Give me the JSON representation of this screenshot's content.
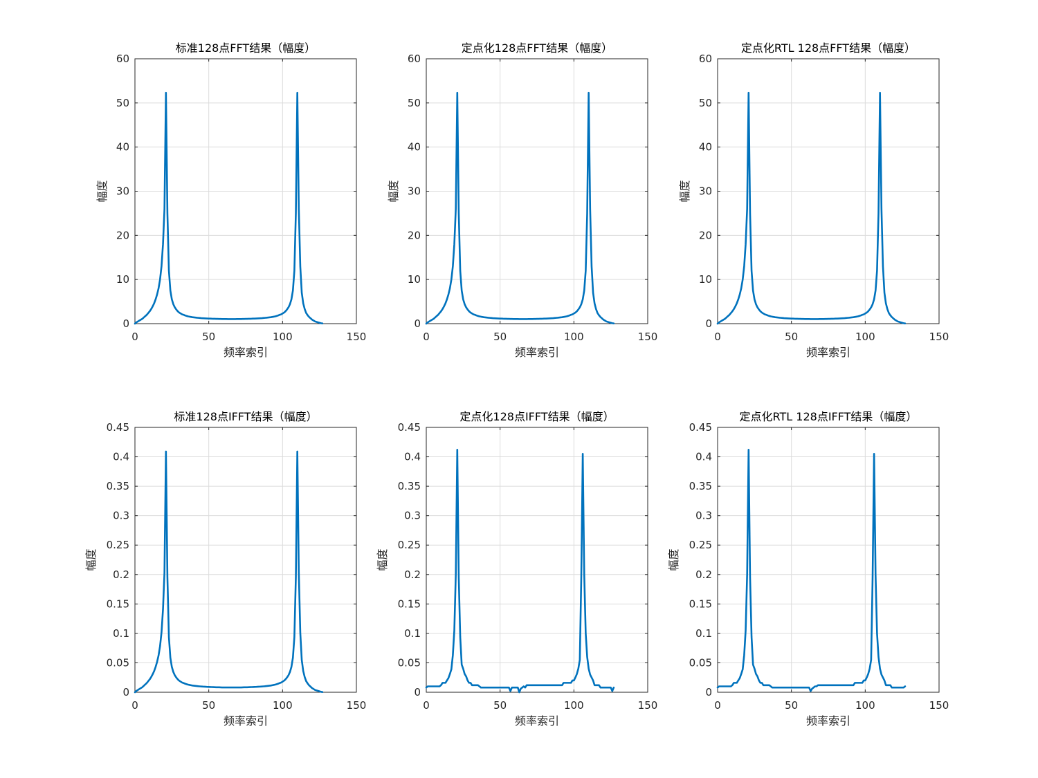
{
  "colors": {
    "line": "#0072BD",
    "axis": "#262626",
    "grid": "#dcdcdc"
  },
  "chart_data": [
    {
      "type": "line",
      "title": "标准128点FFT结果（幅度）",
      "xlabel": "频率索引",
      "ylabel": "幅度",
      "xlim": [
        0,
        150
      ],
      "ylim": [
        0,
        60
      ],
      "xticks": [
        0,
        50,
        100,
        150
      ],
      "yticks": [
        0,
        10,
        20,
        30,
        40,
        50,
        60
      ],
      "ytick_labels": [
        "0",
        "10",
        "20",
        "30",
        "40",
        "50",
        "60"
      ],
      "grid": true,
      "series": [
        {
          "values": [
            0,
            0.3,
            0.5,
            0.7,
            0.9,
            1.1,
            1.4,
            1.7,
            2.0,
            2.4,
            2.8,
            3.3,
            3.9,
            4.6,
            5.5,
            6.6,
            8.0,
            10.0,
            13.0,
            18.0,
            26.0,
            52.3,
            25.0,
            12.0,
            7.5,
            5.5,
            4.4,
            3.7,
            3.2,
            2.8,
            2.5,
            2.3,
            2.1,
            2.0,
            1.85,
            1.75,
            1.65,
            1.58,
            1.52,
            1.46,
            1.42,
            1.38,
            1.34,
            1.31,
            1.28,
            1.25,
            1.23,
            1.21,
            1.19,
            1.17,
            1.15,
            1.14,
            1.12,
            1.11,
            1.1,
            1.09,
            1.08,
            1.07,
            1.06,
            1.05,
            1.05,
            1.04,
            1.04,
            1.03,
            1.03,
            1.03,
            1.03,
            1.03,
            1.03,
            1.04,
            1.04,
            1.05,
            1.05,
            1.06,
            1.07,
            1.08,
            1.09,
            1.1,
            1.11,
            1.12,
            1.14,
            1.15,
            1.17,
            1.19,
            1.21,
            1.23,
            1.25,
            1.28,
            1.31,
            1.34,
            1.38,
            1.42,
            1.46,
            1.52,
            1.58,
            1.65,
            1.75,
            1.85,
            2.0,
            2.1,
            2.3,
            2.5,
            2.8,
            3.2,
            3.7,
            4.4,
            5.5,
            7.5,
            12.0,
            25.0,
            52.3,
            26.0,
            13.0,
            7.0,
            4.6,
            3.3,
            2.4,
            1.9,
            1.5,
            1.2,
            0.9,
            0.7,
            0.5,
            0.4,
            0.3,
            0.2,
            0.1,
            0.05
          ]
        }
      ]
    },
    {
      "type": "line",
      "title": "定点化128点FFT结果（幅度）",
      "xlabel": "频率索引",
      "ylabel": "幅度",
      "xlim": [
        0,
        150
      ],
      "ylim": [
        0,
        60
      ],
      "xticks": [
        0,
        50,
        100,
        150
      ],
      "yticks": [
        0,
        10,
        20,
        30,
        40,
        50,
        60
      ],
      "ytick_labels": [
        "0",
        "10",
        "20",
        "30",
        "40",
        "50",
        "60"
      ],
      "grid": true,
      "series": [
        {
          "values": [
            0,
            0.3,
            0.5,
            0.7,
            0.9,
            1.1,
            1.4,
            1.7,
            2.0,
            2.4,
            2.8,
            3.3,
            3.9,
            4.6,
            5.5,
            6.6,
            8.0,
            10.0,
            13.0,
            18.0,
            26.0,
            52.3,
            25.0,
            12.0,
            7.5,
            5.5,
            4.4,
            3.7,
            3.2,
            2.8,
            2.5,
            2.3,
            2.1,
            2.0,
            1.85,
            1.75,
            1.65,
            1.58,
            1.52,
            1.46,
            1.42,
            1.38,
            1.34,
            1.31,
            1.28,
            1.25,
            1.23,
            1.21,
            1.19,
            1.17,
            1.15,
            1.14,
            1.12,
            1.11,
            1.1,
            1.09,
            1.08,
            1.07,
            1.06,
            1.05,
            1.05,
            1.04,
            1.04,
            1.03,
            1.03,
            1.03,
            1.03,
            1.03,
            1.03,
            1.04,
            1.04,
            1.05,
            1.05,
            1.06,
            1.07,
            1.08,
            1.09,
            1.1,
            1.11,
            1.12,
            1.14,
            1.15,
            1.17,
            1.19,
            1.21,
            1.23,
            1.25,
            1.28,
            1.31,
            1.34,
            1.38,
            1.42,
            1.46,
            1.52,
            1.58,
            1.65,
            1.75,
            1.85,
            2.0,
            2.1,
            2.3,
            2.5,
            2.8,
            3.2,
            3.7,
            4.4,
            5.5,
            7.5,
            12.0,
            25.0,
            52.3,
            26.0,
            13.0,
            7.0,
            4.6,
            3.3,
            2.4,
            1.9,
            1.5,
            1.2,
            0.9,
            0.7,
            0.5,
            0.4,
            0.3,
            0.2,
            0.1,
            0.05
          ]
        }
      ]
    },
    {
      "type": "line",
      "title": "定点化RTL 128点FFT结果（幅度）",
      "xlabel": "频率索引",
      "ylabel": "幅度",
      "xlim": [
        0,
        150
      ],
      "ylim": [
        0,
        60
      ],
      "xticks": [
        0,
        50,
        100,
        150
      ],
      "yticks": [
        0,
        10,
        20,
        30,
        40,
        50,
        60
      ],
      "ytick_labels": [
        "0",
        "10",
        "20",
        "30",
        "40",
        "50",
        "60"
      ],
      "grid": true,
      "series": [
        {
          "values": [
            0,
            0.3,
            0.5,
            0.7,
            0.9,
            1.1,
            1.4,
            1.7,
            2.0,
            2.4,
            2.8,
            3.3,
            3.9,
            4.6,
            5.5,
            6.6,
            8.0,
            10.0,
            13.0,
            18.0,
            26.0,
            52.3,
            25.0,
            12.0,
            7.5,
            5.5,
            4.4,
            3.7,
            3.2,
            2.8,
            2.5,
            2.3,
            2.1,
            2.0,
            1.85,
            1.75,
            1.65,
            1.58,
            1.52,
            1.46,
            1.42,
            1.38,
            1.34,
            1.31,
            1.28,
            1.25,
            1.23,
            1.21,
            1.19,
            1.17,
            1.15,
            1.14,
            1.12,
            1.11,
            1.1,
            1.09,
            1.08,
            1.07,
            1.06,
            1.05,
            1.05,
            1.04,
            1.04,
            1.03,
            1.03,
            1.03,
            1.03,
            1.03,
            1.03,
            1.04,
            1.04,
            1.05,
            1.05,
            1.06,
            1.07,
            1.08,
            1.09,
            1.1,
            1.11,
            1.12,
            1.14,
            1.15,
            1.17,
            1.19,
            1.21,
            1.23,
            1.25,
            1.28,
            1.31,
            1.34,
            1.38,
            1.42,
            1.46,
            1.52,
            1.58,
            1.65,
            1.75,
            1.85,
            2.0,
            2.1,
            2.3,
            2.5,
            2.8,
            3.2,
            3.7,
            4.4,
            5.5,
            7.5,
            12.0,
            25.0,
            52.3,
            26.0,
            13.0,
            7.0,
            4.6,
            3.3,
            2.4,
            1.9,
            1.5,
            1.2,
            0.9,
            0.7,
            0.5,
            0.4,
            0.3,
            0.2,
            0.1,
            0.05
          ]
        }
      ]
    },
    {
      "type": "line",
      "title": "标准128点IFFT结果（幅度）",
      "xlabel": "频率索引",
      "ylabel": "幅度",
      "xlim": [
        0,
        150
      ],
      "ylim": [
        0,
        0.45
      ],
      "xticks": [
        0,
        50,
        100,
        150
      ],
      "yticks": [
        0,
        0.05,
        0.1,
        0.15,
        0.2,
        0.25,
        0.3,
        0.35,
        0.4,
        0.45
      ],
      "ytick_labels": [
        "0",
        "0.05",
        "0.1",
        "0.15",
        "0.2",
        "0.25",
        "0.3",
        "0.35",
        "0.4",
        "0.45"
      ],
      "grid": true,
      "series": [
        {
          "values": [
            0,
            0.0023,
            0.0039,
            0.0055,
            0.007,
            0.0086,
            0.011,
            0.0133,
            0.0156,
            0.0188,
            0.0219,
            0.0258,
            0.0305,
            0.0359,
            0.043,
            0.0516,
            0.0625,
            0.0782,
            0.1016,
            0.1407,
            0.2033,
            0.409,
            0.1955,
            0.0938,
            0.0586,
            0.043,
            0.0344,
            0.0289,
            0.025,
            0.0219,
            0.0196,
            0.018,
            0.0164,
            0.0156,
            0.0145,
            0.0137,
            0.0129,
            0.0124,
            0.0119,
            0.0114,
            0.0111,
            0.0108,
            0.0105,
            0.0102,
            0.01,
            0.0098,
            0.0096,
            0.0095,
            0.0093,
            0.0091,
            0.009,
            0.0089,
            0.0088,
            0.0087,
            0.0086,
            0.0085,
            0.0084,
            0.0084,
            0.0083,
            0.0082,
            0.0082,
            0.0081,
            0.0081,
            0.0081,
            0.0081,
            0.0081,
            0.0081,
            0.0081,
            0.0081,
            0.0081,
            0.0081,
            0.0082,
            0.0082,
            0.0083,
            0.0084,
            0.0084,
            0.0085,
            0.0086,
            0.0087,
            0.0088,
            0.0089,
            0.009,
            0.0091,
            0.0093,
            0.0095,
            0.0096,
            0.0098,
            0.01,
            0.0102,
            0.0105,
            0.0108,
            0.0111,
            0.0114,
            0.0119,
            0.0124,
            0.0129,
            0.0137,
            0.0145,
            0.0156,
            0.0164,
            0.018,
            0.0196,
            0.0219,
            0.025,
            0.0289,
            0.0344,
            0.043,
            0.0586,
            0.0938,
            0.1955,
            0.409,
            0.2033,
            0.1016,
            0.0547,
            0.036,
            0.0258,
            0.0188,
            0.0149,
            0.0117,
            0.0094,
            0.007,
            0.0055,
            0.0039,
            0.0031,
            0.0023,
            0.0016,
            0.0008,
            0.0004
          ]
        }
      ]
    },
    {
      "type": "line",
      "title": "定点化128点IFFT结果（幅度）",
      "xlabel": "频率索引",
      "ylabel": "幅度",
      "xlim": [
        0,
        150
      ],
      "ylim": [
        0,
        0.45
      ],
      "xticks": [
        0,
        50,
        100,
        150
      ],
      "yticks": [
        0,
        0.05,
        0.1,
        0.15,
        0.2,
        0.25,
        0.3,
        0.35,
        0.4,
        0.45
      ],
      "ytick_labels": [
        "0",
        "0.05",
        "0.1",
        "0.15",
        "0.2",
        "0.25",
        "0.3",
        "0.35",
        "0.4",
        "0.45"
      ],
      "grid": true,
      "series": [
        {
          "values": [
            0.008,
            0.01,
            0.01,
            0.01,
            0.01,
            0.01,
            0.01,
            0.01,
            0.01,
            0.01,
            0.012,
            0.016,
            0.016,
            0.016,
            0.02,
            0.024,
            0.031,
            0.039,
            0.063,
            0.105,
            0.2,
            0.412,
            0.195,
            0.094,
            0.047,
            0.04,
            0.031,
            0.027,
            0.02,
            0.016,
            0.016,
            0.012,
            0.012,
            0.012,
            0.012,
            0.012,
            0.01,
            0.008,
            0.008,
            0.008,
            0.008,
            0.008,
            0.008,
            0.008,
            0.008,
            0.008,
            0.008,
            0.008,
            0.008,
            0.008,
            0.008,
            0.008,
            0.008,
            0.008,
            0.008,
            0.008,
            0.008,
            0.002,
            0.008,
            0.008,
            0.008,
            0.008,
            0.008,
            0,
            0.006,
            0.008,
            0.01,
            0.008,
            0.012,
            0.012,
            0.012,
            0.012,
            0.012,
            0.012,
            0.012,
            0.012,
            0.012,
            0.012,
            0.012,
            0.012,
            0.012,
            0.012,
            0.012,
            0.012,
            0.012,
            0.012,
            0.012,
            0.012,
            0.012,
            0.012,
            0.012,
            0.012,
            0.012,
            0.016,
            0.016,
            0.016,
            0.016,
            0.016,
            0.016,
            0.02,
            0.02,
            0.025,
            0.031,
            0.04,
            0.055,
            0.195,
            0.405,
            0.2,
            0.1,
            0.06,
            0.04,
            0.03,
            0.025,
            0.02,
            0.012,
            0.012,
            0.012,
            0.012,
            0.008,
            0.008,
            0.008,
            0.008,
            0.008,
            0.008,
            0.008,
            0.008,
            0.002,
            0.008
          ]
        }
      ]
    },
    {
      "type": "line",
      "title": "定点化RTL 128点IFFT结果（幅度）",
      "xlabel": "频率索引",
      "ylabel": "幅度",
      "xlim": [
        0,
        150
      ],
      "ylim": [
        0,
        0.45
      ],
      "xticks": [
        0,
        50,
        100,
        150
      ],
      "yticks": [
        0,
        0.05,
        0.1,
        0.15,
        0.2,
        0.25,
        0.3,
        0.35,
        0.4,
        0.45
      ],
      "ytick_labels": [
        "0",
        "0.05",
        "0.1",
        "0.15",
        "0.2",
        "0.25",
        "0.3",
        "0.35",
        "0.4",
        "0.45"
      ],
      "grid": true,
      "series": [
        {
          "values": [
            0.008,
            0.01,
            0.01,
            0.01,
            0.01,
            0.01,
            0.01,
            0.01,
            0.01,
            0.01,
            0.012,
            0.016,
            0.016,
            0.016,
            0.02,
            0.024,
            0.031,
            0.039,
            0.063,
            0.105,
            0.2,
            0.412,
            0.195,
            0.094,
            0.047,
            0.04,
            0.031,
            0.027,
            0.02,
            0.016,
            0.016,
            0.012,
            0.012,
            0.012,
            0.012,
            0.012,
            0.01,
            0.008,
            0.008,
            0.008,
            0.008,
            0.008,
            0.008,
            0.008,
            0.008,
            0.008,
            0.008,
            0.008,
            0.008,
            0.008,
            0.008,
            0.008,
            0.008,
            0.008,
            0.008,
            0.008,
            0.008,
            0.008,
            0.008,
            0.008,
            0.008,
            0.008,
            0.008,
            0.002,
            0.006,
            0.008,
            0.01,
            0.01,
            0.012,
            0.012,
            0.012,
            0.012,
            0.012,
            0.012,
            0.012,
            0.012,
            0.012,
            0.012,
            0.012,
            0.012,
            0.012,
            0.012,
            0.012,
            0.012,
            0.012,
            0.012,
            0.012,
            0.012,
            0.012,
            0.012,
            0.012,
            0.012,
            0.012,
            0.016,
            0.016,
            0.016,
            0.016,
            0.016,
            0.016,
            0.02,
            0.02,
            0.025,
            0.031,
            0.04,
            0.055,
            0.195,
            0.405,
            0.2,
            0.1,
            0.06,
            0.04,
            0.03,
            0.025,
            0.02,
            0.012,
            0.012,
            0.012,
            0.012,
            0.008,
            0.008,
            0.008,
            0.008,
            0.008,
            0.008,
            0.008,
            0.008,
            0.008,
            0.01
          ]
        }
      ]
    }
  ]
}
